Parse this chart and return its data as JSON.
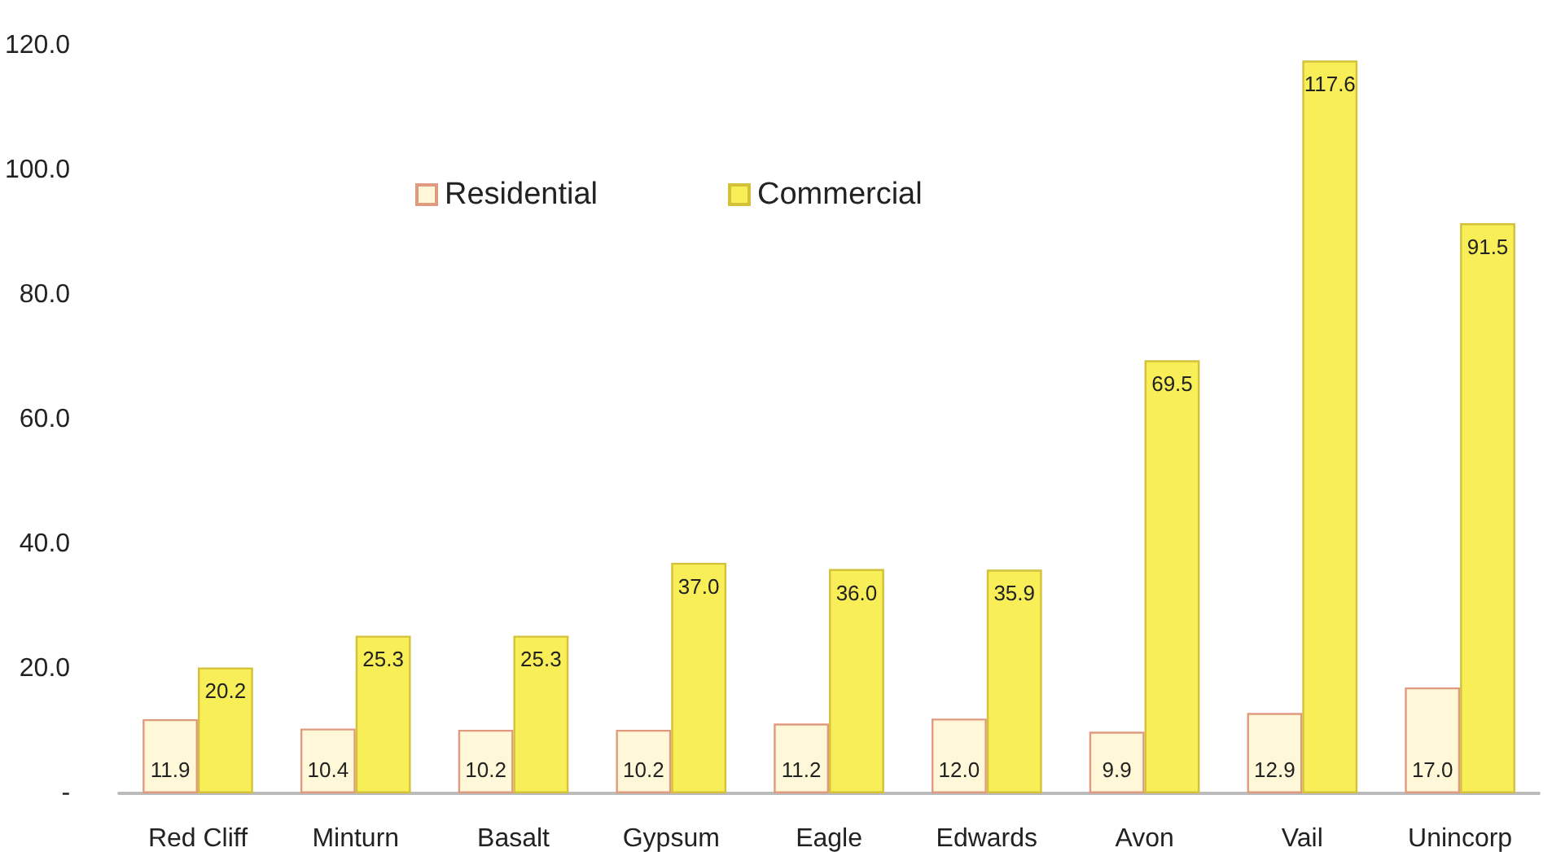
{
  "chart_data": {
    "type": "bar",
    "categories": [
      "Red Cliff",
      "Minturn",
      "Basalt",
      "Gypsum",
      "Eagle",
      "Edwards",
      "Avon",
      "Vail",
      "Unincorp"
    ],
    "series": [
      {
        "name": "Residential",
        "color": "#fff8d8",
        "values": [
          11.9,
          10.4,
          10.2,
          10.2,
          11.2,
          12.0,
          9.9,
          12.9,
          17.0
        ],
        "value_labels": [
          "11.9",
          "10.4",
          "10.2",
          "10.2",
          "11.2",
          "12.0",
          "9.9",
          "12.9",
          "17.0"
        ]
      },
      {
        "name": "Commercial",
        "color": "#f8ee58",
        "values": [
          20.2,
          25.3,
          25.3,
          37.0,
          36.0,
          35.9,
          69.5,
          117.6,
          91.5
        ],
        "value_labels": [
          "20.2",
          "25.3",
          "25.3",
          "37.0",
          "36.0",
          "35.9",
          "69.5",
          "117.6",
          "91.5"
        ]
      }
    ],
    "ylim": [
      0,
      120
    ],
    "yticks": [
      {
        "value": 0,
        "label": "-"
      },
      {
        "value": 20,
        "label": "20.0"
      },
      {
        "value": 40,
        "label": "40.0"
      },
      {
        "value": 60,
        "label": "60.0"
      },
      {
        "value": 80,
        "label": "80.0"
      },
      {
        "value": 100,
        "label": "100.0"
      },
      {
        "value": 120,
        "label": "120.0"
      }
    ],
    "legend": "top",
    "grid": false
  }
}
